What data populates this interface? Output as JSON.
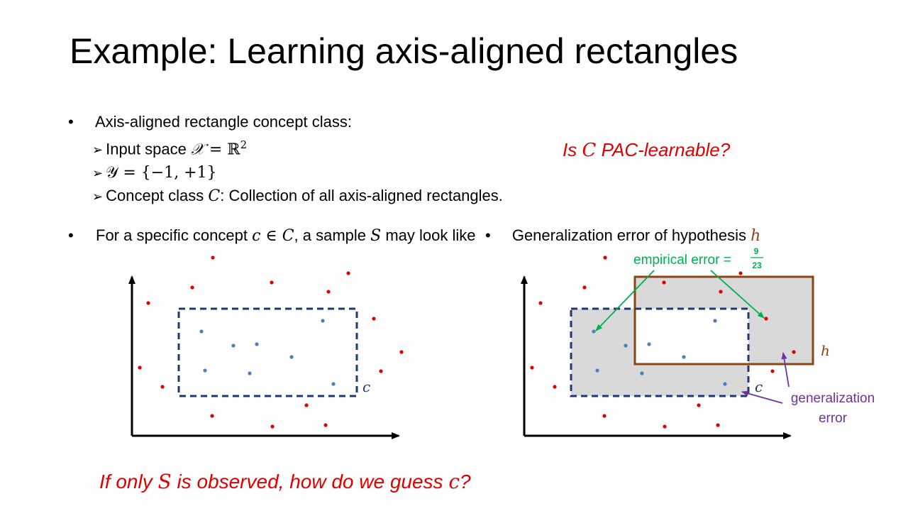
{
  "slide": {
    "title": "Example: Learning axis-aligned rectangles",
    "bullet1": {
      "text": "Axis-aligned rectangle concept class:",
      "sub1_prefix": "Input space ",
      "sub1_math_left": "𝒳",
      "sub1_math_eq": " = ℝ",
      "sub1_math_sup": "2",
      "sub2_math": "𝒴 = {−1, +1}",
      "sub3_prefix": "Concept class ",
      "sub3_var": "C",
      "sub3_suffix": ": Collection of all axis-aligned rectangles."
    },
    "question": {
      "prefix": "Is ",
      "var": "C",
      "suffix": " PAC-learnable?"
    },
    "left_bullet": {
      "t1": "For a specific concept ",
      "v1": "c ∈ C",
      "t2": ", a sample ",
      "v2": "S",
      "t3": " may look like"
    },
    "right_bullet": {
      "t1": "Generalization error of hypothesis ",
      "v1": "h"
    },
    "bottom_question": {
      "t1": "If only ",
      "v1": "S",
      "t2": " is observed, how do we guess ",
      "v2": "c",
      "t3": "?"
    },
    "left_diagram": {
      "rect_label": "c"
    },
    "right_diagram": {
      "c_label": "c",
      "h_label": "h",
      "empirical_label": "empirical error = ",
      "empirical_num": "9",
      "empirical_den": "23",
      "gen_error_line1": "generalization",
      "gen_error_line2": "error"
    },
    "colors": {
      "red_point": "#e00000",
      "blue_point": "#4a7fc1",
      "concept_rect": "#1f3872",
      "hypothesis_rect": "#8b4513",
      "shade": "#d9d9d9",
      "empirical": "#00b050",
      "generalization": "#7030a0",
      "question": "#e00000"
    }
  }
}
